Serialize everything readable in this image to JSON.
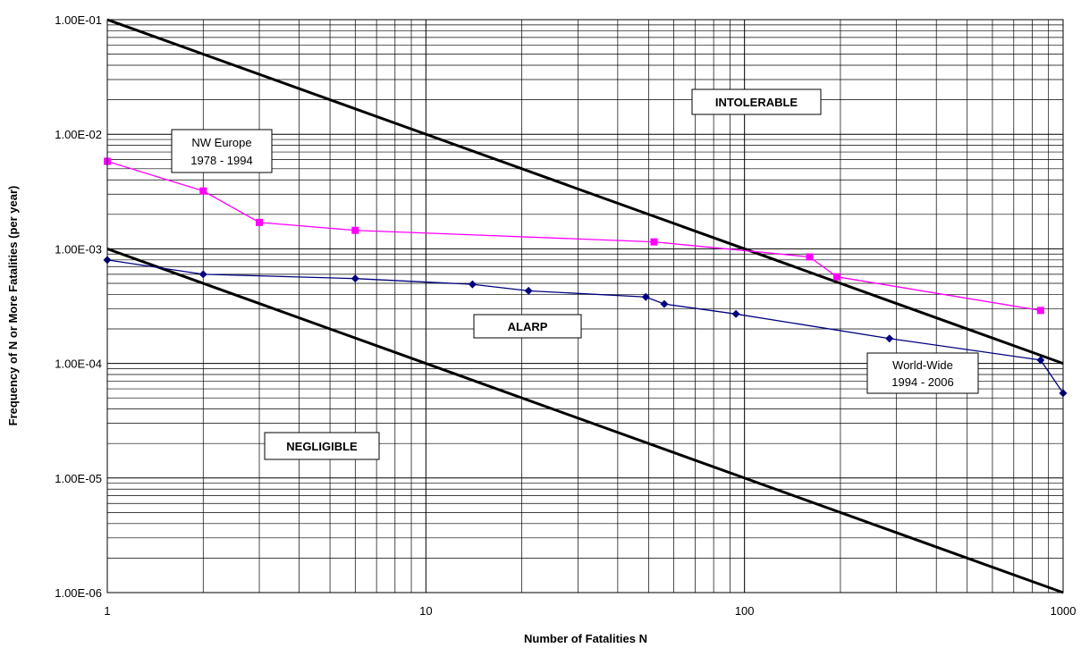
{
  "chart_data": {
    "type": "line",
    "x_scale": "log",
    "y_scale": "log",
    "xlim": [
      1,
      1000
    ],
    "ylim": [
      1e-06,
      0.1
    ],
    "xlabel": "Number of Fatalities N",
    "ylabel": "Frequency of N or More Fatalities (per year)",
    "x_tick_labels": [
      "1",
      "10",
      "100",
      "1000"
    ],
    "y_tick_labels": [
      "1.00E-06",
      "1.00E-05",
      "1.00E-04",
      "1.00E-03",
      "1.00E-02",
      "1.00E-01"
    ],
    "grid": true,
    "criterion_lines": [
      {
        "x": [
          1,
          1000
        ],
        "y": [
          0.1,
          0.0001
        ],
        "color": "#000000"
      },
      {
        "x": [
          1,
          1000
        ],
        "y": [
          0.001,
          1e-06
        ],
        "color": "#000000"
      }
    ],
    "region_labels": [
      "INTOLERABLE",
      "ALARP",
      "NEGLIGIBLE"
    ],
    "series": [
      {
        "name_lines": [
          "NW Europe",
          "1978 - 1994"
        ],
        "color": "#ff00ff",
        "marker": "square",
        "x": [
          1,
          2,
          3,
          6,
          52,
          160,
          195,
          850
        ],
        "y": [
          0.0058,
          0.0032,
          0.0017,
          0.00145,
          0.00115,
          0.00085,
          0.00057,
          0.00029
        ]
      },
      {
        "name_lines": [
          "World-Wide",
          "1994 - 2006"
        ],
        "color": "#000080",
        "marker": "diamond",
        "x": [
          1,
          2,
          6,
          14,
          21,
          49,
          56,
          94,
          285,
          850,
          1000
        ],
        "y": [
          0.0008,
          0.0006,
          0.00055,
          0.00049,
          0.00043,
          0.00038,
          0.00033,
          0.00027,
          0.000165,
          0.000107,
          5.5e-05
        ]
      }
    ]
  }
}
